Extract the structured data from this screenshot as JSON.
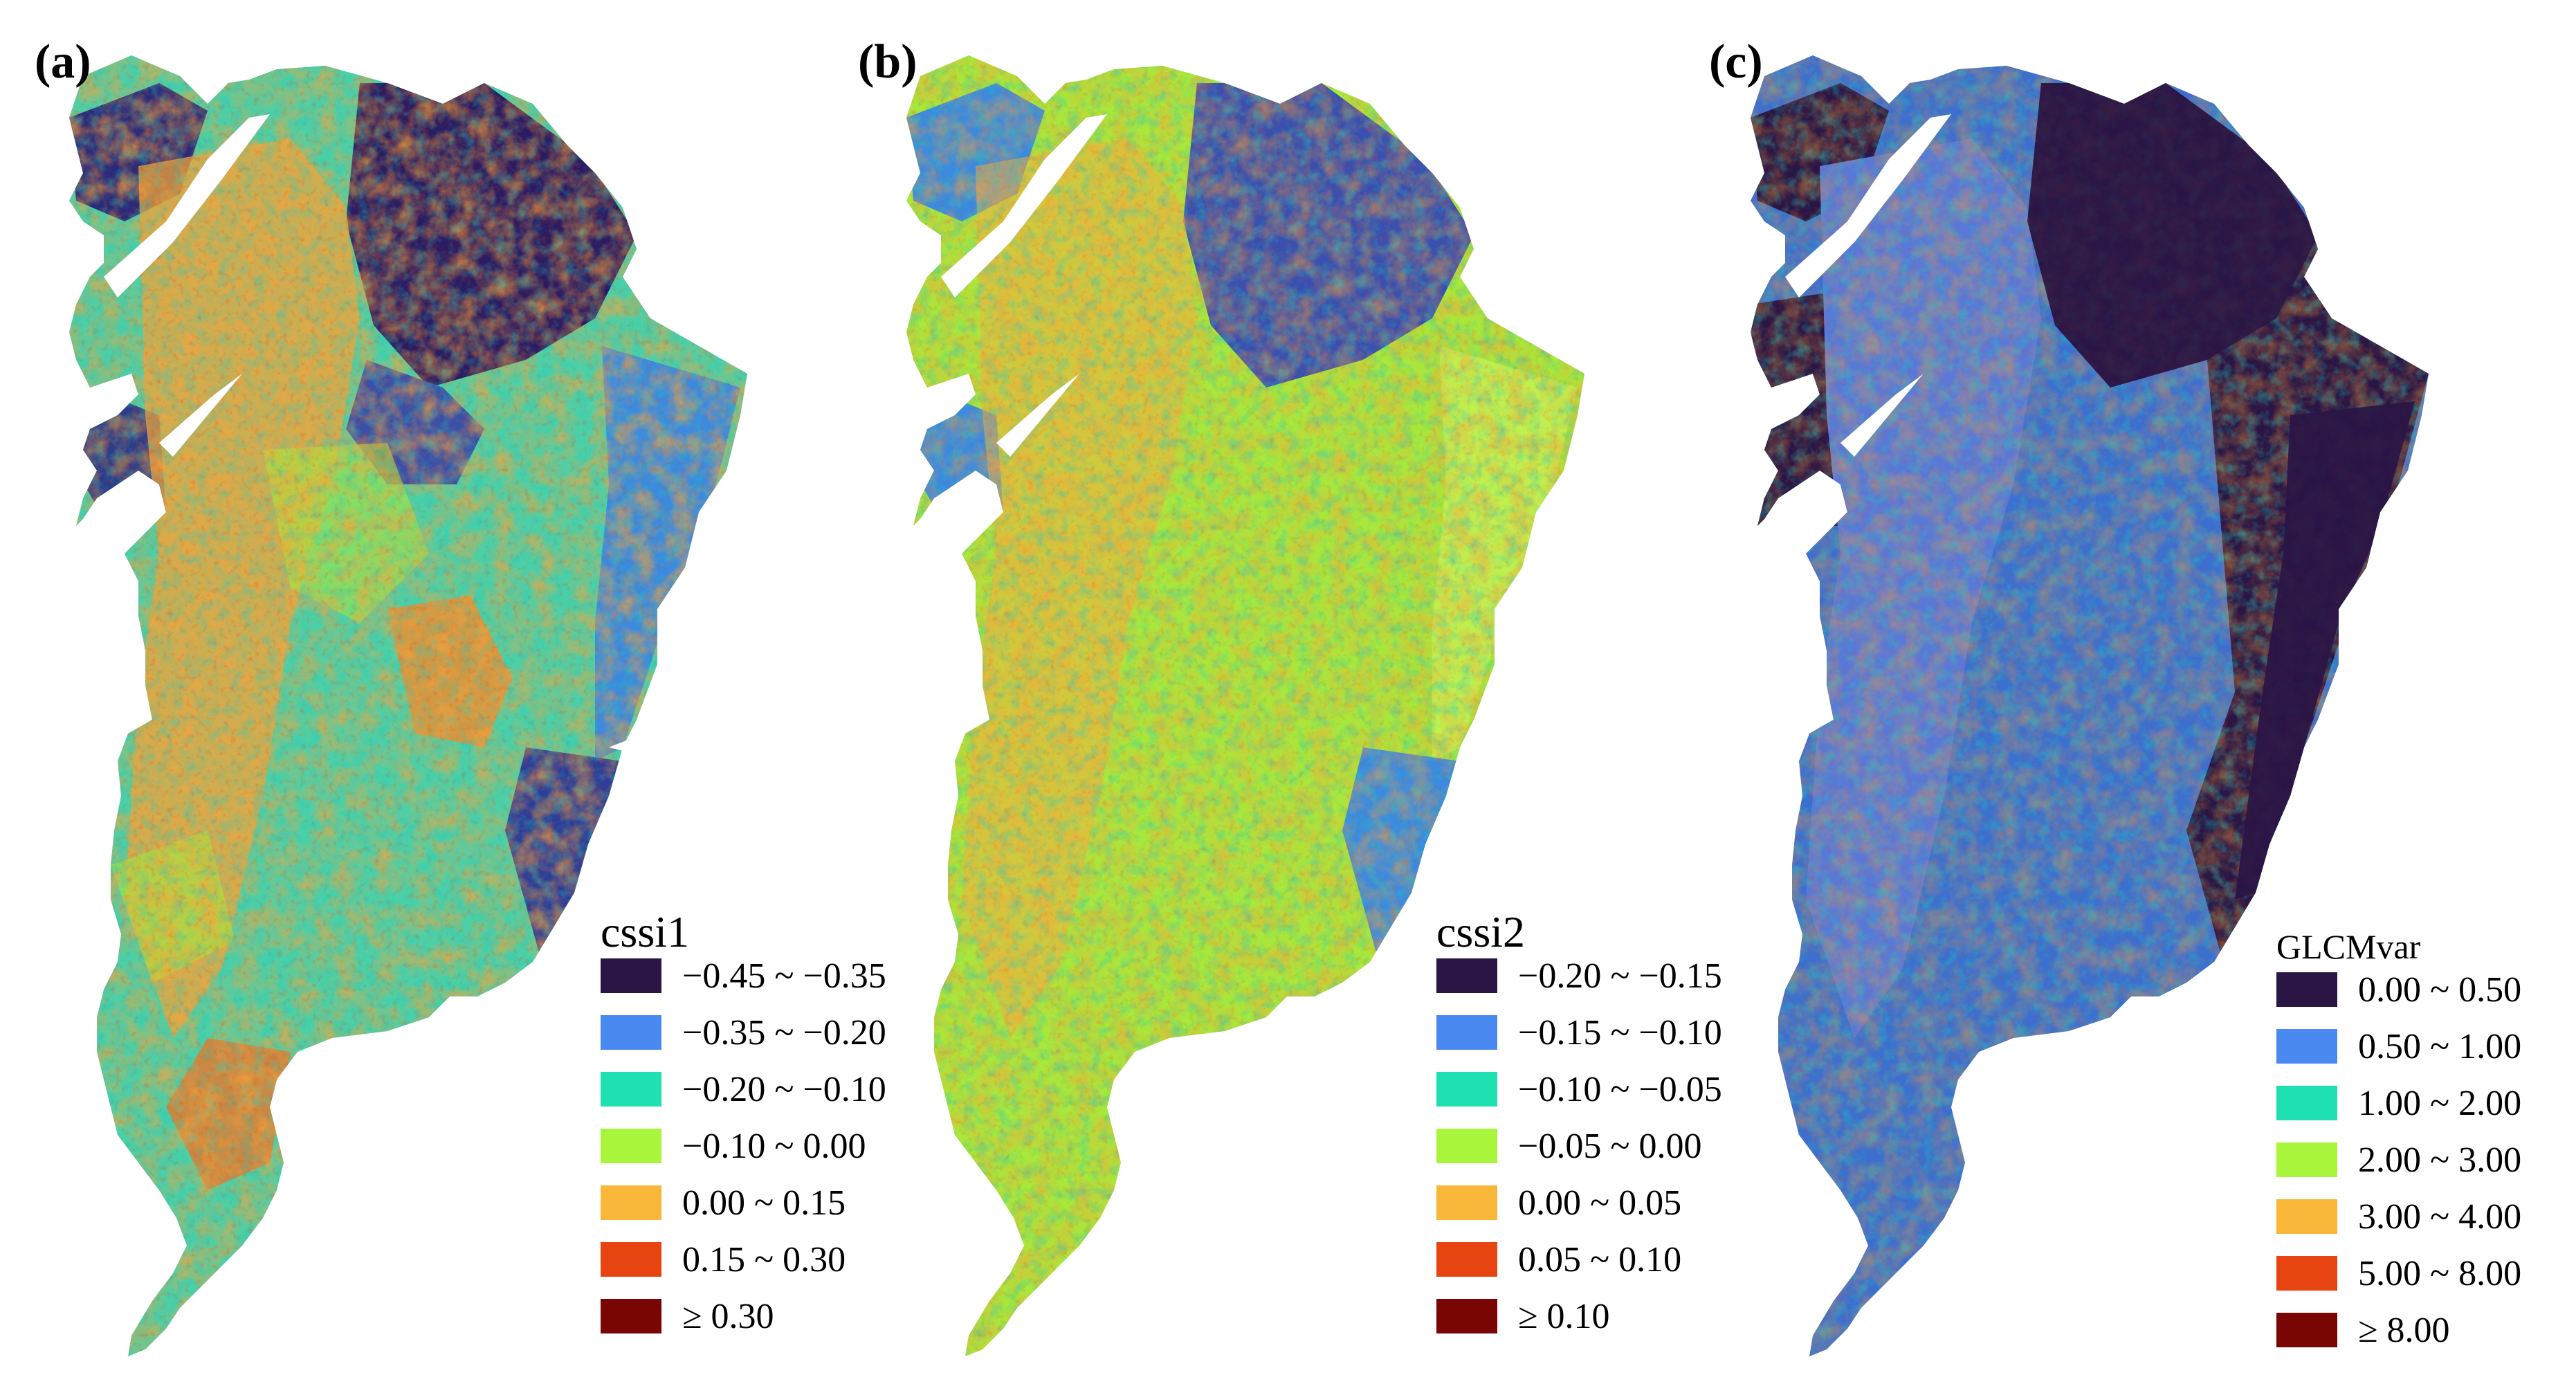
{
  "panels": [
    {
      "label": "(a)",
      "legend": {
        "title": "cssi1",
        "items": [
          {
            "range": "−0.45 ~ −0.35",
            "color": "#2a1545"
          },
          {
            "range": "−0.35 ~ −0.20",
            "color": "#4a8af0"
          },
          {
            "range": "−0.20 ~ −0.10",
            "color": "#1fe0b0"
          },
          {
            "range": "−0.10 ~ 0.00",
            "color": "#a8f53c"
          },
          {
            "range": "0.00 ~ 0.15",
            "color": "#f9b73a"
          },
          {
            "range": "0.15 ~ 0.30",
            "color": "#e84412"
          },
          {
            "range": "≥ 0.30",
            "color": "#7a0505"
          }
        ]
      }
    },
    {
      "label": "(b)",
      "legend": {
        "title": "cssi2",
        "items": [
          {
            "range": "−0.20 ~ −0.15",
            "color": "#2a1545"
          },
          {
            "range": "−0.15 ~ −0.10",
            "color": "#4a8af0"
          },
          {
            "range": "−0.10 ~ −0.05",
            "color": "#1fe0b0"
          },
          {
            "range": "−0.05 ~ 0.00",
            "color": "#a8f53c"
          },
          {
            "range": "0.00 ~ 0.05",
            "color": "#f9b73a"
          },
          {
            "range": "0.05 ~ 0.10",
            "color": "#e84412"
          },
          {
            "range": "≥ 0.10",
            "color": "#7a0505"
          }
        ]
      }
    },
    {
      "label": "(c)",
      "legend": {
        "title": "GLCMvar",
        "items": [
          {
            "range": "0.00 ~ 0.50",
            "color": "#2a1545"
          },
          {
            "range": "0.50 ~ 1.00",
            "color": "#4a8af0"
          },
          {
            "range": "1.00 ~ 2.00",
            "color": "#1fe0b0"
          },
          {
            "range": "2.00 ~ 3.00",
            "color": "#a8f53c"
          },
          {
            "range": "3.00 ~ 4.00",
            "color": "#f9b73a"
          },
          {
            "range": "5.00 ~ 8.00",
            "color": "#e84412"
          },
          {
            "range": "≥ 8.00",
            "color": "#7a0505"
          }
        ]
      }
    }
  ]
}
